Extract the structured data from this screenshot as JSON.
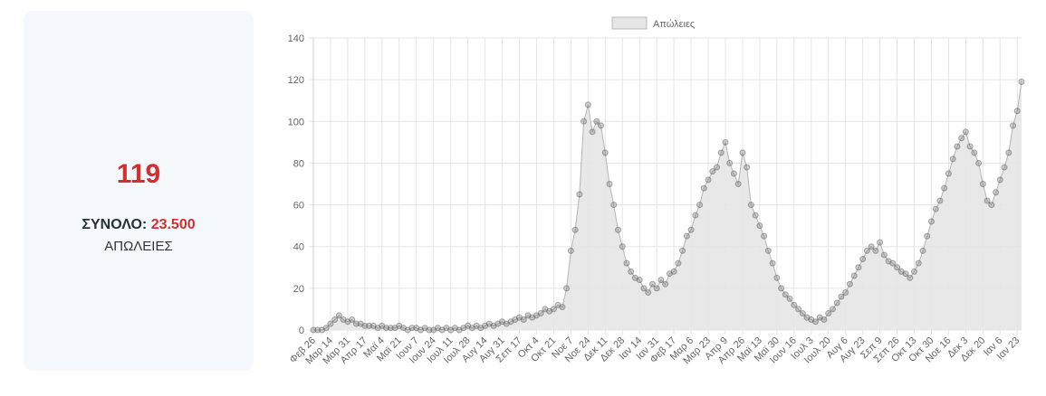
{
  "summary": {
    "value": 119,
    "total_label": "ΣΥΝΟΛΟ:",
    "total": "23.500",
    "label": "ΑΠΩΛΕΙΕΣ"
  },
  "chart_data": {
    "type": "line",
    "series": [
      {
        "name": "Απώλειες",
        "color": "#8c8c8c",
        "fill": "#e6e6e6",
        "values": [
          0,
          0,
          0,
          1,
          3,
          5,
          7,
          5,
          4,
          5,
          3,
          3,
          2,
          2,
          2,
          1,
          2,
          1,
          1,
          1,
          2,
          1,
          0,
          1,
          1,
          0,
          1,
          0,
          0,
          1,
          0,
          1,
          0,
          1,
          0,
          1,
          2,
          1,
          2,
          1,
          2,
          3,
          2,
          3,
          4,
          3,
          4,
          5,
          6,
          5,
          7,
          6,
          7,
          8,
          10,
          9,
          10,
          12,
          11,
          20,
          38,
          48,
          65,
          100,
          108,
          95,
          100,
          98,
          85,
          70,
          60,
          48,
          40,
          32,
          28,
          25,
          24,
          20,
          18,
          22,
          20,
          24,
          22,
          27,
          28,
          32,
          38,
          45,
          48,
          55,
          60,
          68,
          72,
          76,
          78,
          85,
          90,
          80,
          75,
          70,
          85,
          78,
          60,
          55,
          50,
          45,
          38,
          32,
          25,
          20,
          17,
          15,
          12,
          10,
          8,
          6,
          5,
          4,
          6,
          5,
          8,
          10,
          13,
          16,
          18,
          22,
          26,
          30,
          34,
          38,
          40,
          38,
          42,
          36,
          33,
          32,
          30,
          28,
          27,
          25,
          28,
          32,
          38,
          45,
          52,
          58,
          62,
          68,
          75,
          82,
          88,
          92,
          95,
          88,
          85,
          80,
          70,
          62,
          60,
          66,
          72,
          78,
          85,
          98,
          105,
          119
        ]
      }
    ],
    "categories": [
      "Φεβ 26",
      null,
      null,
      null,
      "Μαρ 14",
      null,
      null,
      null,
      "Μαρ 31",
      null,
      null,
      null,
      "Απρ 17",
      null,
      null,
      null,
      "Μαϊ 4",
      null,
      null,
      null,
      "Μαϊ 21",
      null,
      null,
      null,
      "Ιουν 7",
      null,
      null,
      null,
      "Ιουν 24",
      null,
      null,
      null,
      "Ιουλ 11",
      null,
      null,
      null,
      "Ιουλ 28",
      null,
      null,
      null,
      "Αυγ 14",
      null,
      null,
      null,
      "Αυγ 31",
      null,
      null,
      null,
      "Σεπ 17",
      null,
      null,
      null,
      "Οκτ 4",
      null,
      null,
      null,
      "Οκτ 21",
      null,
      null,
      null,
      "Νοε 7",
      null,
      null,
      null,
      "Νοε 24",
      null,
      null,
      null,
      "Δεκ 11",
      null,
      null,
      null,
      "Δεκ 28",
      null,
      null,
      null,
      "Ιαν 14",
      null,
      null,
      null,
      "Ιαν 31",
      null,
      null,
      null,
      "Φεβ 17",
      null,
      null,
      null,
      "Μαρ 6",
      null,
      null,
      null,
      "Μαρ 23",
      null,
      null,
      null,
      "Απρ 9",
      null,
      null,
      null,
      "Απρ 26",
      null,
      null,
      null,
      "Μαϊ 13",
      null,
      null,
      null,
      "Μαϊ 30",
      null,
      null,
      null,
      "Ιουν 16",
      null,
      null,
      null,
      "Ιουλ 3",
      null,
      null,
      null,
      "Ιουλ 20",
      null,
      null,
      null,
      "Αυγ 6",
      null,
      null,
      null,
      "Αυγ 23",
      null,
      null,
      null,
      "Σεπ 9",
      null,
      null,
      null,
      "Σεπ 26",
      null,
      null,
      null,
      "Οκτ 13",
      null,
      null,
      null,
      "Οκτ 30",
      null,
      null,
      null,
      "Νοε 16",
      null,
      null,
      null,
      "Δεκ 3",
      null,
      null,
      null,
      "Δεκ 20",
      null,
      null,
      null,
      "Ιαν 6",
      null,
      null,
      null,
      "Ιαν 23",
      null
    ],
    "ylim": [
      0,
      140
    ],
    "yticks": [
      0,
      20,
      40,
      60,
      80,
      100,
      120,
      140
    ],
    "grid": true
  }
}
